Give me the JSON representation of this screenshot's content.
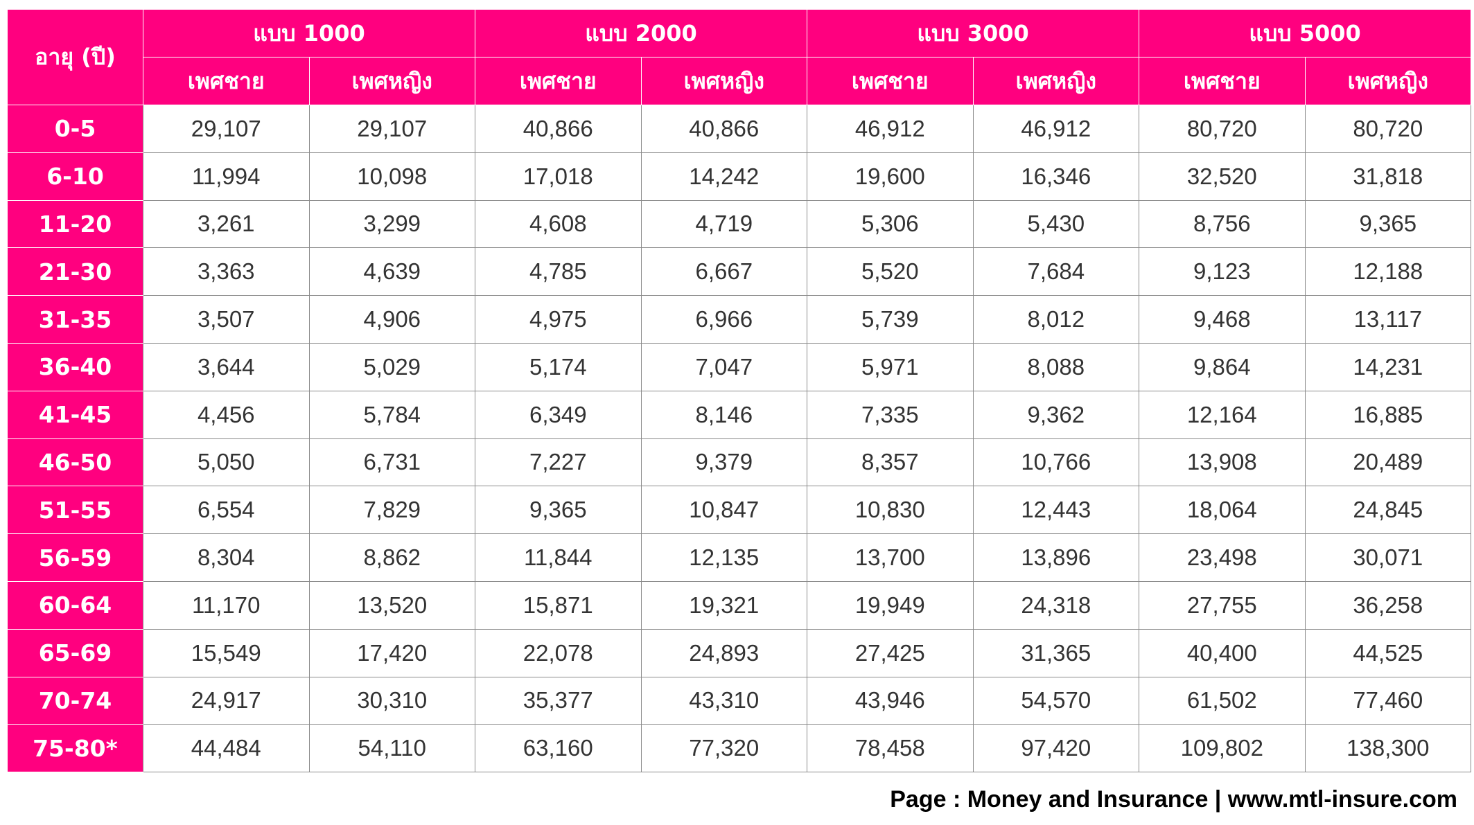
{
  "table": {
    "age_header": "อายุ (ปี)",
    "plans": [
      "แบบ 1000",
      "แบบ 2000",
      "แบบ 3000",
      "แบบ 5000"
    ],
    "male_label": "เพศชาย",
    "female_label": "เพศหญิง",
    "rows": [
      {
        "age": "0-5",
        "values": [
          "29,107",
          "29,107",
          "40,866",
          "40,866",
          "46,912",
          "46,912",
          "80,720",
          "80,720"
        ]
      },
      {
        "age": "6-10",
        "values": [
          "11,994",
          "10,098",
          "17,018",
          "14,242",
          "19,600",
          "16,346",
          "32,520",
          "31,818"
        ]
      },
      {
        "age": "11-20",
        "values": [
          "3,261",
          "3,299",
          "4,608",
          "4,719",
          "5,306",
          "5,430",
          "8,756",
          "9,365"
        ]
      },
      {
        "age": "21-30",
        "values": [
          "3,363",
          "4,639",
          "4,785",
          "6,667",
          "5,520",
          "7,684",
          "9,123",
          "12,188"
        ]
      },
      {
        "age": "31-35",
        "values": [
          "3,507",
          "4,906",
          "4,975",
          "6,966",
          "5,739",
          "8,012",
          "9,468",
          "13,117"
        ]
      },
      {
        "age": "36-40",
        "values": [
          "3,644",
          "5,029",
          "5,174",
          "7,047",
          "5,971",
          "8,088",
          "9,864",
          "14,231"
        ]
      },
      {
        "age": "41-45",
        "values": [
          "4,456",
          "5,784",
          "6,349",
          "8,146",
          "7,335",
          "9,362",
          "12,164",
          "16,885"
        ]
      },
      {
        "age": "46-50",
        "values": [
          "5,050",
          "6,731",
          "7,227",
          "9,379",
          "8,357",
          "10,766",
          "13,908",
          "20,489"
        ]
      },
      {
        "age": "51-55",
        "values": [
          "6,554",
          "7,829",
          "9,365",
          "10,847",
          "10,830",
          "12,443",
          "18,064",
          "24,845"
        ]
      },
      {
        "age": "56-59",
        "values": [
          "8,304",
          "8,862",
          "11,844",
          "12,135",
          "13,700",
          "13,896",
          "23,498",
          "30,071"
        ]
      },
      {
        "age": "60-64",
        "values": [
          "11,170",
          "13,520",
          "15,871",
          "19,321",
          "19,949",
          "24,318",
          "27,755",
          "36,258"
        ]
      },
      {
        "age": "65-69",
        "values": [
          "15,549",
          "17,420",
          "22,078",
          "24,893",
          "27,425",
          "31,365",
          "40,400",
          "44,525"
        ]
      },
      {
        "age": "70-74",
        "values": [
          "24,917",
          "30,310",
          "35,377",
          "43,310",
          "43,946",
          "54,570",
          "61,502",
          "77,460"
        ]
      },
      {
        "age": "75-80*",
        "values": [
          "44,484",
          "54,110",
          "63,160",
          "77,320",
          "78,458",
          "97,420",
          "109,802",
          "138,300"
        ]
      }
    ]
  },
  "footer": {
    "credit": "Page : Money and Insurance | www.mtl-insure.com"
  },
  "colors": {
    "header_bg": "#ff007f",
    "header_text": "#ffffff",
    "cell_text": "#333333",
    "grid": "#8a8a8a"
  }
}
